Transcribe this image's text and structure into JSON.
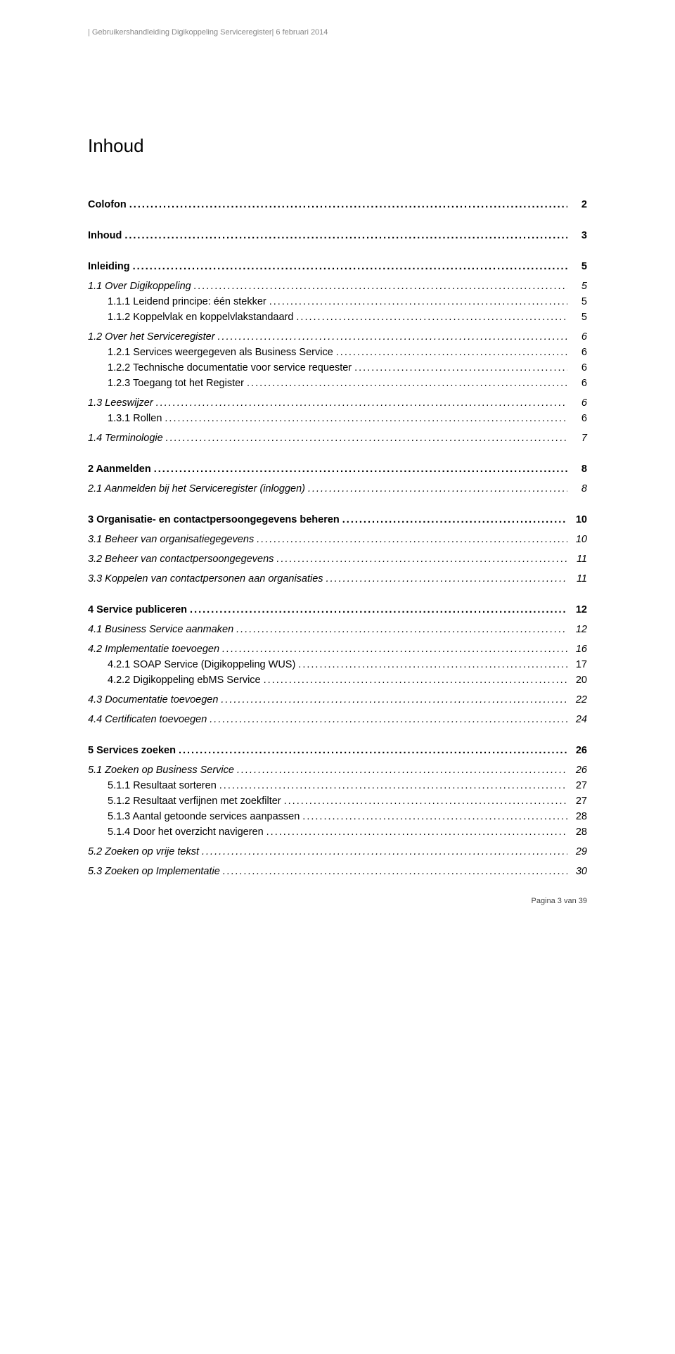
{
  "header": {
    "text": "| Gebruikershandleiding Digikoppeling Serviceregister| 6  februari 2014"
  },
  "title": "Inhoud",
  "footer": {
    "text": "Pagina 3 van 39"
  },
  "toc": [
    {
      "label": "Colofon",
      "page": "2",
      "level": 0,
      "bold": true,
      "italic": false,
      "gapBefore": "none"
    },
    {
      "label": "Inhoud",
      "page": "3",
      "level": 0,
      "bold": true,
      "italic": false,
      "gapBefore": "lg"
    },
    {
      "label": "Inleiding",
      "page": "5",
      "level": 0,
      "bold": true,
      "italic": false,
      "gapBefore": "lg"
    },
    {
      "label": "1.1  Over Digikoppeling",
      "page": "5",
      "level": 1,
      "bold": false,
      "italic": true,
      "gapBefore": "md"
    },
    {
      "label": "1.1.1  Leidend principe: één stekker",
      "page": "5",
      "level": 2,
      "bold": false,
      "italic": false,
      "gapBefore": "none"
    },
    {
      "label": "1.1.2  Koppelvlak en koppelvlakstandaard",
      "page": "5",
      "level": 2,
      "bold": false,
      "italic": false,
      "gapBefore": "none"
    },
    {
      "label": "1.2  Over het Serviceregister",
      "page": "6",
      "level": 1,
      "bold": false,
      "italic": true,
      "gapBefore": "md"
    },
    {
      "label": "1.2.1  Services weergegeven als Business Service",
      "page": "6",
      "level": 2,
      "bold": false,
      "italic": false,
      "gapBefore": "none"
    },
    {
      "label": "1.2.2  Technische documentatie voor service requester",
      "page": "6",
      "level": 2,
      "bold": false,
      "italic": false,
      "gapBefore": "none"
    },
    {
      "label": "1.2.3  Toegang tot het Register",
      "page": "6",
      "level": 2,
      "bold": false,
      "italic": false,
      "gapBefore": "none"
    },
    {
      "label": "1.3  Leeswijzer",
      "page": "6",
      "level": 1,
      "bold": false,
      "italic": true,
      "gapBefore": "md"
    },
    {
      "label": "1.3.1  Rollen",
      "page": "6",
      "level": 2,
      "bold": false,
      "italic": false,
      "gapBefore": "none"
    },
    {
      "label": "1.4  Terminologie",
      "page": "7",
      "level": 1,
      "bold": false,
      "italic": true,
      "gapBefore": "md"
    },
    {
      "label": "2  Aanmelden",
      "page": "8",
      "level": 0,
      "bold": true,
      "italic": false,
      "gapBefore": "lg"
    },
    {
      "label": "2.1  Aanmelden bij het Serviceregister (inloggen)",
      "page": "8",
      "level": 1,
      "bold": false,
      "italic": true,
      "gapBefore": "md"
    },
    {
      "label": "3  Organisatie- en contactpersoongegevens beheren",
      "page": "10",
      "level": 0,
      "bold": true,
      "italic": false,
      "gapBefore": "lg"
    },
    {
      "label": "3.1  Beheer van organisatiegegevens",
      "page": "10",
      "level": 1,
      "bold": false,
      "italic": true,
      "gapBefore": "md"
    },
    {
      "label": "3.2  Beheer van contactpersoongegevens",
      "page": "11",
      "level": 1,
      "bold": false,
      "italic": true,
      "gapBefore": "md"
    },
    {
      "label": "3.3  Koppelen van contactpersonen aan organisaties",
      "page": "11",
      "level": 1,
      "bold": false,
      "italic": true,
      "gapBefore": "md"
    },
    {
      "label": "4  Service publiceren",
      "page": "12",
      "level": 0,
      "bold": true,
      "italic": false,
      "gapBefore": "lg"
    },
    {
      "label": "4.1  Business Service aanmaken",
      "page": "12",
      "level": 1,
      "bold": false,
      "italic": true,
      "gapBefore": "md"
    },
    {
      "label": "4.2  Implementatie toevoegen",
      "page": "16",
      "level": 1,
      "bold": false,
      "italic": true,
      "gapBefore": "md"
    },
    {
      "label": "4.2.1  SOAP Service (Digikoppeling WUS)",
      "page": "17",
      "level": 2,
      "bold": false,
      "italic": false,
      "gapBefore": "none"
    },
    {
      "label": "4.2.2  Digikoppeling ebMS Service",
      "page": "20",
      "level": 2,
      "bold": false,
      "italic": false,
      "gapBefore": "none"
    },
    {
      "label": "4.3  Documentatie toevoegen",
      "page": "22",
      "level": 1,
      "bold": false,
      "italic": true,
      "gapBefore": "md"
    },
    {
      "label": "4.4  Certificaten toevoegen",
      "page": "24",
      "level": 1,
      "bold": false,
      "italic": true,
      "gapBefore": "md"
    },
    {
      "label": "5  Services zoeken",
      "page": "26",
      "level": 0,
      "bold": true,
      "italic": false,
      "gapBefore": "lg"
    },
    {
      "label": "5.1  Zoeken op Business Service",
      "page": "26",
      "level": 1,
      "bold": false,
      "italic": true,
      "gapBefore": "md"
    },
    {
      "label": "5.1.1  Resultaat sorteren",
      "page": "27",
      "level": 2,
      "bold": false,
      "italic": false,
      "gapBefore": "none"
    },
    {
      "label": "5.1.2  Resultaat verfijnen met zoekfilter",
      "page": "27",
      "level": 2,
      "bold": false,
      "italic": false,
      "gapBefore": "none"
    },
    {
      "label": "5.1.3  Aantal getoonde services aanpassen",
      "page": "28",
      "level": 2,
      "bold": false,
      "italic": false,
      "gapBefore": "none"
    },
    {
      "label": "5.1.4  Door het overzicht navigeren",
      "page": "28",
      "level": 2,
      "bold": false,
      "italic": false,
      "gapBefore": "none"
    },
    {
      "label": "5.2  Zoeken op vrije tekst",
      "page": "29",
      "level": 1,
      "bold": false,
      "italic": true,
      "gapBefore": "md"
    },
    {
      "label": "5.3  Zoeken op Implementatie",
      "page": "30",
      "level": 1,
      "bold": false,
      "italic": true,
      "gapBefore": "md"
    }
  ]
}
